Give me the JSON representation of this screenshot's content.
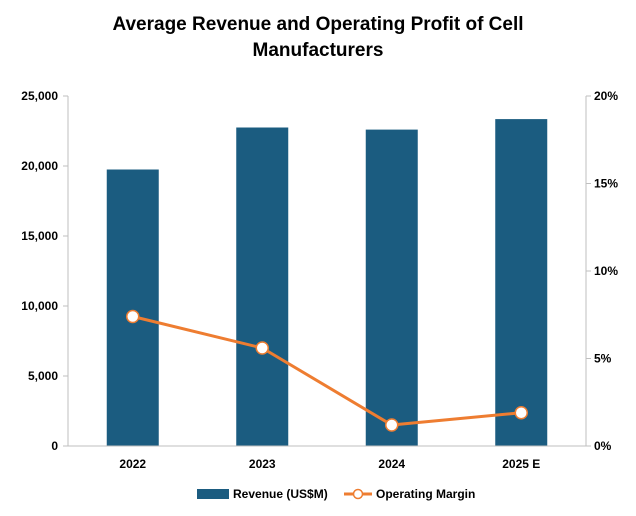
{
  "chart_data": {
    "type": "bar",
    "title": "Average Revenue and Operating Profit of Cell Manufacturers",
    "title_lines": [
      "Average Revenue and Operating Profit of Cell",
      "Manufacturers"
    ],
    "categories": [
      "2022",
      "2023",
      "2024",
      "2025 E"
    ],
    "series": [
      {
        "name": "Revenue (US$M)",
        "type": "bar",
        "axis": "left",
        "color": "#1b5c80",
        "values": [
          19750,
          22750,
          22600,
          23350
        ]
      },
      {
        "name": "Operating Margin",
        "type": "line",
        "axis": "right",
        "color": "#ee7d31",
        "marker": "open-circle",
        "values": [
          7.4,
          5.6,
          1.2,
          1.9
        ]
      }
    ],
    "y_left": {
      "range": [
        0,
        25000
      ],
      "ticks": [
        0,
        5000,
        10000,
        15000,
        20000,
        25000
      ],
      "tick_labels": [
        "0",
        "5,000",
        "10,000",
        "15,000",
        "20,000",
        "25,000"
      ]
    },
    "y_right": {
      "range": [
        0,
        20
      ],
      "ticks": [
        0,
        5,
        10,
        15,
        20
      ],
      "tick_labels": [
        "0%",
        "5%",
        "10%",
        "15%",
        "20%"
      ]
    },
    "xlabel": "",
    "ylabel": "",
    "grid": false,
    "legend_position": "bottom"
  }
}
